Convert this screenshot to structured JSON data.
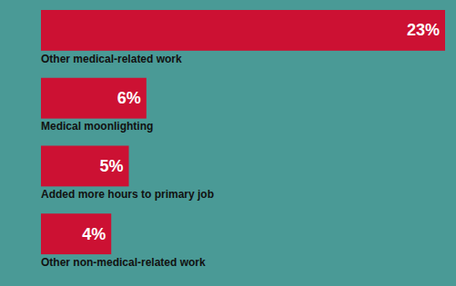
{
  "chart_data": {
    "type": "bar",
    "orientation": "horizontal",
    "categories": [
      "Other medical-related work",
      "Medical moonlighting",
      "Added more hours to primary job",
      "Other non-medical-related work"
    ],
    "values": [
      23,
      6,
      5,
      4
    ],
    "value_labels": [
      "23%",
      "6%",
      "5%",
      "4%"
    ],
    "color": "#CC1133",
    "xlim": [
      0,
      23
    ],
    "data_labels": true,
    "tick_labels": false
  }
}
